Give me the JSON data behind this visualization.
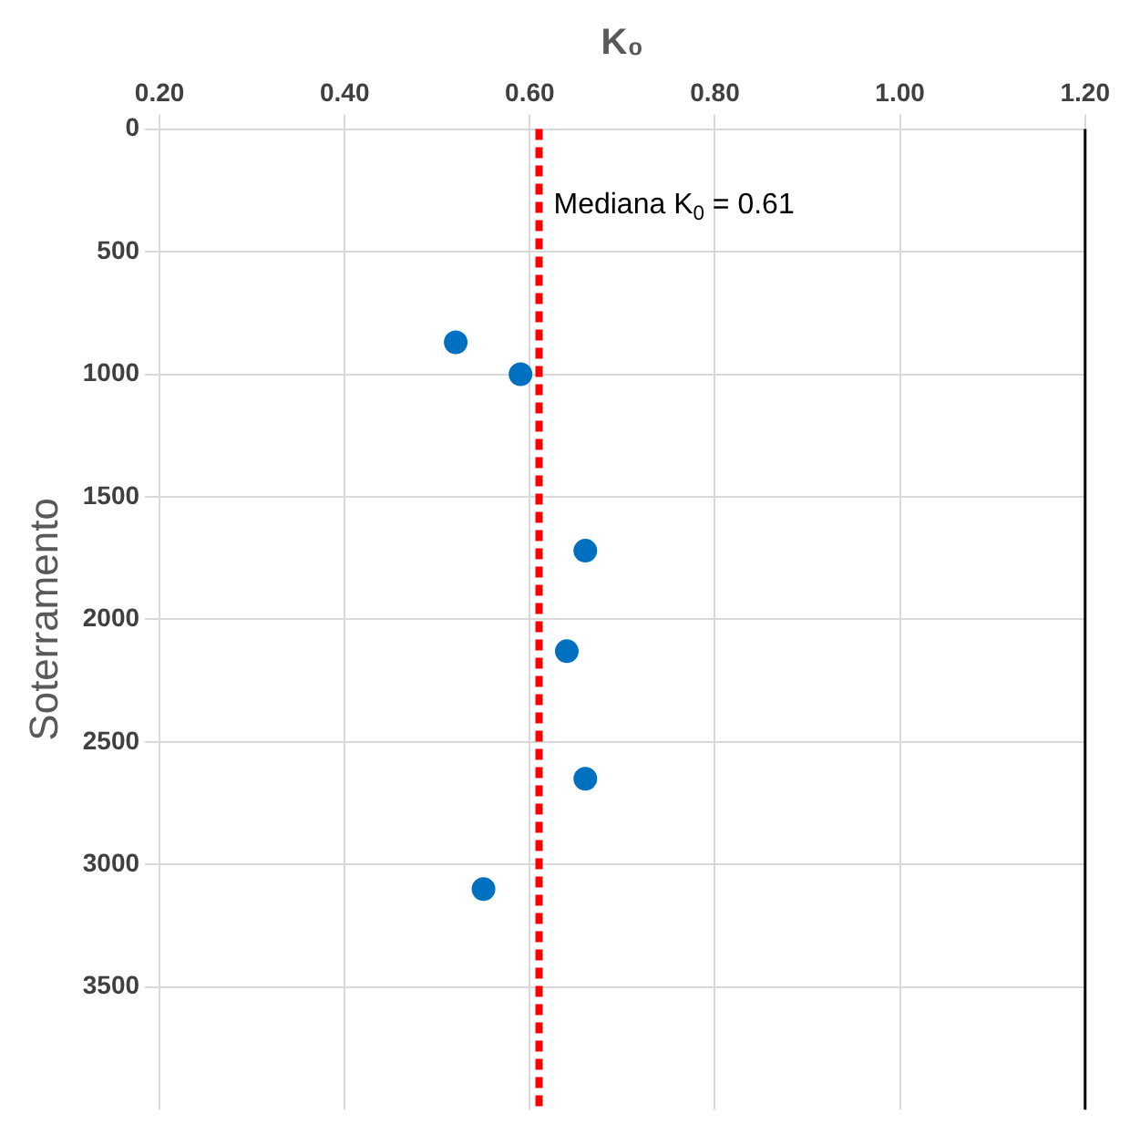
{
  "chart_data": {
    "type": "scatter",
    "xlabel": "K₀",
    "ylabel": "Soterramento",
    "x": [
      0.52,
      0.59,
      0.66,
      0.64,
      0.66,
      0.55
    ],
    "series": [
      {
        "color": "#0070c0",
        "values": [
          870,
          1000,
          1720,
          2130,
          2650,
          3100
        ]
      }
    ],
    "xlim": [
      0.2,
      1.2
    ],
    "xticks": [
      {
        "value": 0.2,
        "label": "0.20"
      },
      {
        "value": 0.4,
        "label": "0.40"
      },
      {
        "value": 0.6,
        "label": "0.60"
      },
      {
        "value": 0.8,
        "label": "0.80"
      },
      {
        "value": 1.0,
        "label": "1.00"
      },
      {
        "value": 1.2,
        "label": "1.20"
      }
    ],
    "ylim": [
      4000,
      0
    ],
    "yticks": [
      0,
      500,
      1000,
      1500,
      2000,
      2500,
      3000,
      3500
    ],
    "grid": true,
    "legend": false,
    "marker": "circle",
    "ref_lines": [
      {
        "axis": "x",
        "value": 0.61,
        "label": "Mediana K$_{0}$ = 0.61",
        "color": "#ff0000",
        "line_style": "dashed"
      }
    ]
  }
}
